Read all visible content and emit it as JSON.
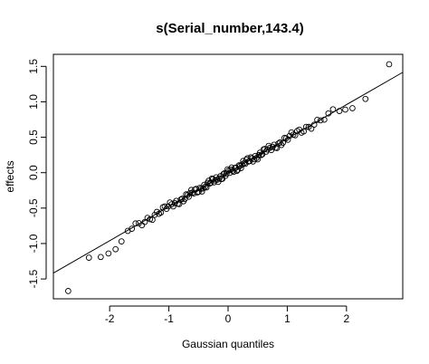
{
  "chart_data": {
    "type": "scatter",
    "title": "s(Serial_number,143.4)",
    "xlabel": "Gaussian quantiles",
    "ylabel": "effects",
    "xlim": [
      -2.95,
      2.95
    ],
    "ylim": [
      -1.78,
      1.67
    ],
    "xticks": [
      -2,
      -1,
      0,
      1,
      2
    ],
    "yticks": [
      -1.5,
      -1.0,
      -0.5,
      0.0,
      0.5,
      1.0,
      1.5
    ],
    "xtick_labels": [
      "-2",
      "-1",
      "0",
      "1",
      "2"
    ],
    "ytick_labels": [
      "-1.5",
      "-1.0",
      "-0.5",
      "0.0",
      "0.5",
      "1.0",
      "1.5"
    ],
    "reference_line": {
      "intercept": 0.0,
      "slope": 0.48
    },
    "n_points": 144,
    "tail_points": [
      {
        "x": -2.7,
        "y": -1.67
      },
      {
        "x": -2.35,
        "y": -1.2
      },
      {
        "x": -2.15,
        "y": -1.19
      },
      {
        "x": -2.02,
        "y": -1.14
      },
      {
        "x": -1.9,
        "y": -1.08
      },
      {
        "x": -1.8,
        "y": -0.97
      },
      {
        "x": 1.88,
        "y": 0.87
      },
      {
        "x": 1.98,
        "y": 0.89
      },
      {
        "x": 2.1,
        "y": 0.91
      },
      {
        "x": 2.32,
        "y": 1.04
      },
      {
        "x": 2.72,
        "y": 1.53
      }
    ],
    "grid": false
  }
}
